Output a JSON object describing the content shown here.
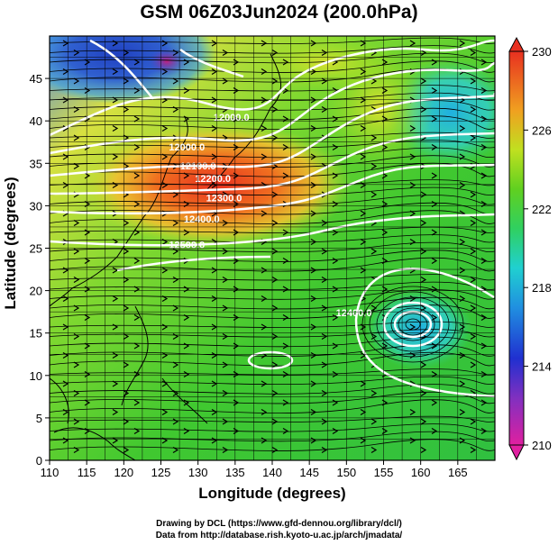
{
  "title": "GSM 06Z03Jun2024 (200.0hPa)",
  "xlabel": "Longitude (degrees)",
  "ylabel": "Latitude  (degrees)",
  "credits": [
    "Drawing by DCL (https://www.gfd-dennou.org/library/dcl/)",
    "Data from http://database.rish.kyoto-u.ac.jp/arch/jmadata/"
  ],
  "map": {
    "lon_range": [
      110,
      170
    ],
    "lat_range": [
      0,
      50
    ],
    "lon_ticks": [
      110,
      115,
      120,
      125,
      130,
      135,
      140,
      145,
      150,
      155,
      160,
      165
    ],
    "lat_ticks": [
      0,
      5,
      10,
      15,
      20,
      25,
      30,
      35,
      40,
      45
    ],
    "grid_step_deg": 2.5
  },
  "colorbar": {
    "min": 210,
    "max": 230,
    "tick_labels": [
      "230",
      "226",
      "222",
      "218",
      "214",
      "210"
    ],
    "tick_values": [
      230,
      226,
      222,
      218,
      214,
      210
    ],
    "colors": [
      "#e020a0",
      "#2030d0",
      "#20b0e0",
      "#20e0a0",
      "#40d020",
      "#a0e020",
      "#f0d020",
      "#f08020",
      "#e83020"
    ]
  },
  "contour_labels": [
    {
      "text": "12000.0",
      "lon": 134.5,
      "lat": 40
    },
    {
      "text": "12000.0",
      "lon": 128.5,
      "lat": 36.5
    },
    {
      "text": "12100.0",
      "lon": 130,
      "lat": 34.3
    },
    {
      "text": "12200.0",
      "lon": 132,
      "lat": 32.8
    },
    {
      "text": "12300.0",
      "lon": 133.5,
      "lat": 30.5
    },
    {
      "text": "12400.0",
      "lon": 130.5,
      "lat": 28
    },
    {
      "text": "12500.0",
      "lon": 128.5,
      "lat": 25
    },
    {
      "text": "12400.0",
      "lon": 151,
      "lat": 17
    }
  ]
}
